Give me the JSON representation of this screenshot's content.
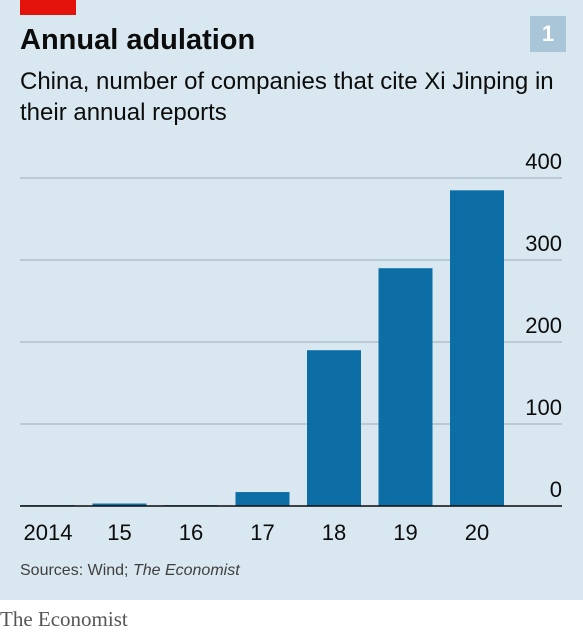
{
  "header": {
    "title": "Annual adulation",
    "subtitle": "China, number of companies that cite Xi Jinping in their annual reports",
    "chart_number": "1"
  },
  "footer": {
    "source_prefix": "Sources: Wind; ",
    "source_italic": "The Economist",
    "brand": "The Economist"
  },
  "colors": {
    "bar": "#0c6ea5",
    "background": "#d8e7f0",
    "accent_red": "#e3120b",
    "gridline": "#a8b8c4"
  },
  "chart_data": {
    "type": "bar",
    "title": "Annual adulation",
    "subtitle": "China, number of companies that cite Xi Jinping in their annual reports",
    "categories": [
      "2014",
      "15",
      "16",
      "17",
      "18",
      "19",
      "20"
    ],
    "values": [
      1,
      3,
      1,
      17,
      190,
      290,
      385
    ],
    "xlabel": "",
    "ylabel": "",
    "ylim": [
      0,
      400
    ],
    "yticks": [
      0,
      100,
      200,
      300,
      400
    ],
    "ytick_labels": [
      "0",
      "100",
      "200",
      "300",
      "400"
    ],
    "y_axis_side": "right",
    "grid": true,
    "legend": "none"
  }
}
